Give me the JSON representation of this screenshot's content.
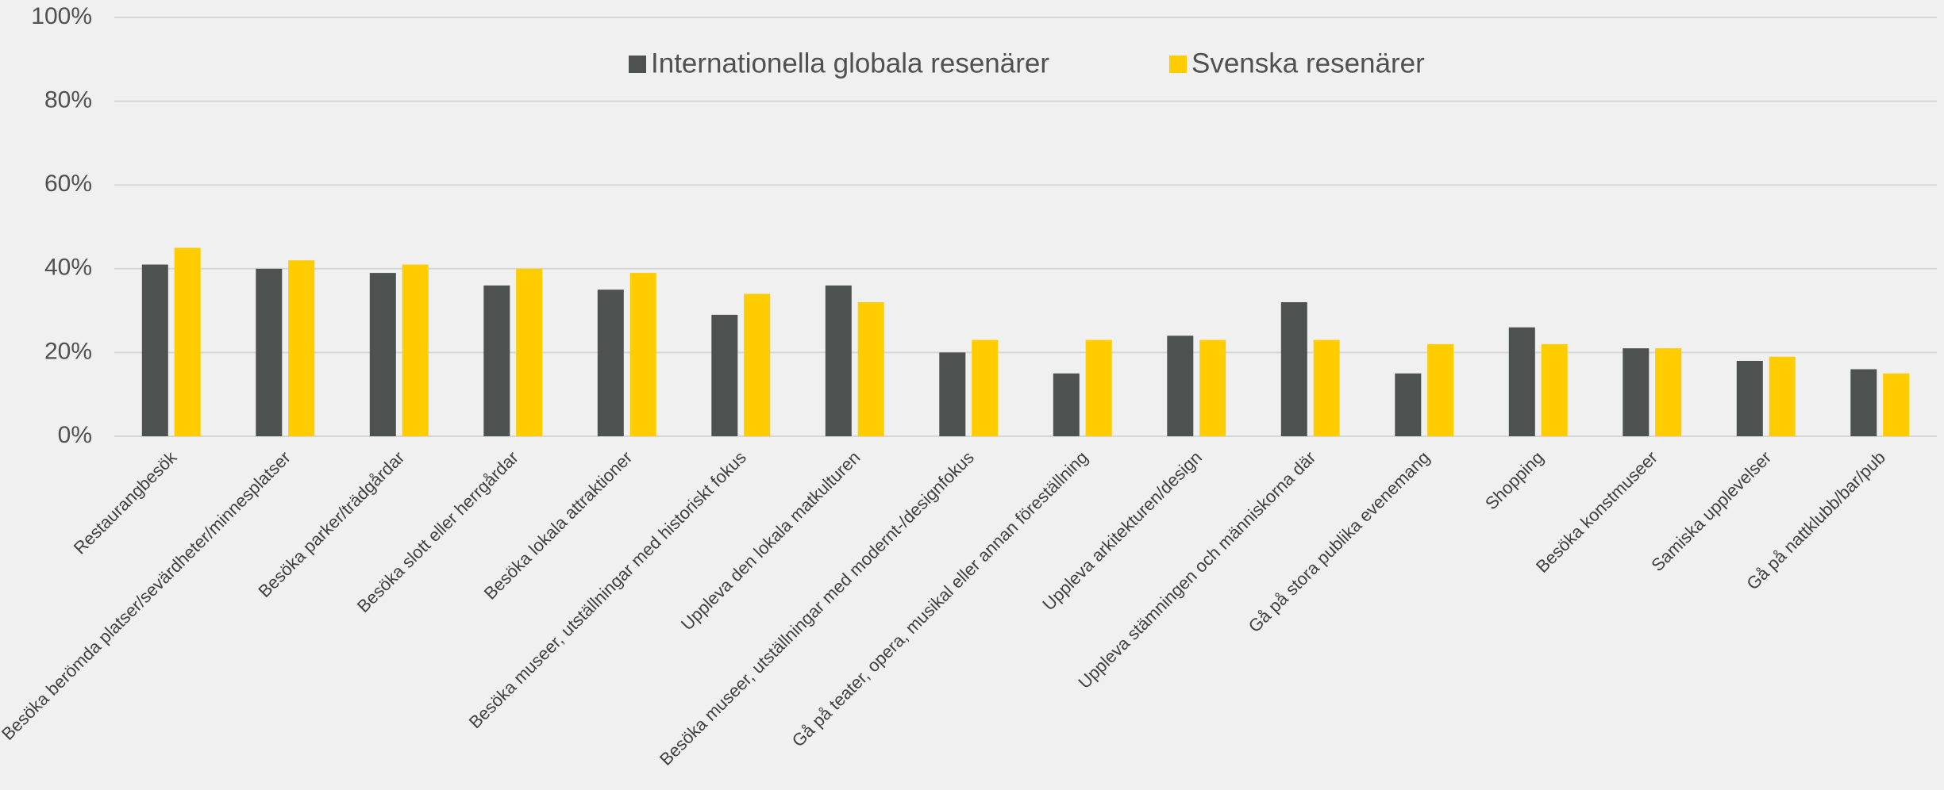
{
  "chart_data": {
    "type": "bar",
    "categories": [
      "Restaurangbesök",
      "Besöka berömda platser/sevärdheter/minnesplatser",
      "Besöka parker/trädgårdar",
      "Besöka slott eller herrgårdar",
      "Besöka lokala attraktioner",
      "Besöka museer, utställningar med historiskt fokus",
      "Uppleva den lokala matkulturen",
      "Besöka museer, utställningar med modernt-/designfokus",
      "Gå på teater, opera, musikal eller annan föreställning",
      "Uppleva arkitekturen/design",
      "Uppleva stämningen och människorna där",
      "Gå på stora publika evenemang",
      "Shopping",
      "Besöka konstmuseer",
      "Samiska upplevelser",
      "Gå på nattklubb/bar/pub"
    ],
    "series": [
      {
        "name": "Internationella globala resenärer",
        "color": "#4d5250",
        "values": [
          41,
          40,
          39,
          36,
          35,
          29,
          36,
          20,
          15,
          24,
          32,
          15,
          26,
          21,
          18,
          16
        ]
      },
      {
        "name": "Svenska resenärer",
        "color": "#ffcc00",
        "values": [
          45,
          42,
          41,
          40,
          39,
          34,
          32,
          23,
          23,
          23,
          23,
          22,
          22,
          21,
          19,
          15
        ]
      }
    ],
    "ylim": [
      0,
      100
    ],
    "yticks": [
      {
        "value": 0,
        "label": "0%"
      },
      {
        "value": 20,
        "label": "20%"
      },
      {
        "value": 40,
        "label": "40%"
      },
      {
        "value": 60,
        "label": "60%"
      },
      {
        "value": 80,
        "label": "80%"
      },
      {
        "value": 100,
        "label": "100%"
      }
    ],
    "grid": true,
    "legend": "top"
  }
}
